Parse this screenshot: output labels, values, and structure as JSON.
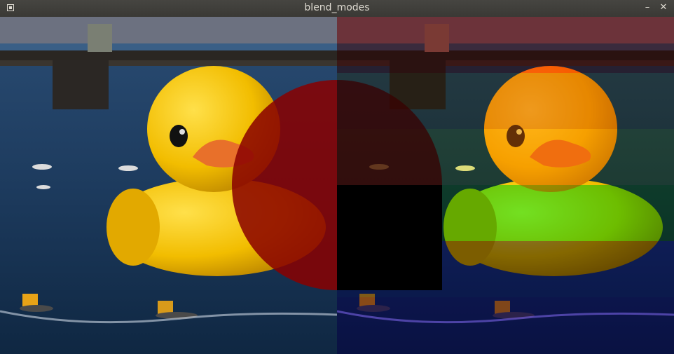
{
  "window": {
    "title": "blend_modes",
    "minimize_glyph": "–",
    "close_glyph": "✕"
  },
  "colors": {
    "titlebar": "#3c3b37",
    "water": "#1d3b5e",
    "duck_yellow": "#f5c400",
    "beak_orange": "#e8702a",
    "overlay_red": "#ff0000",
    "overlay_yellow": "#ffff00",
    "overlay_green": "#00ff00",
    "overlay_blue": "#0000ff"
  }
}
